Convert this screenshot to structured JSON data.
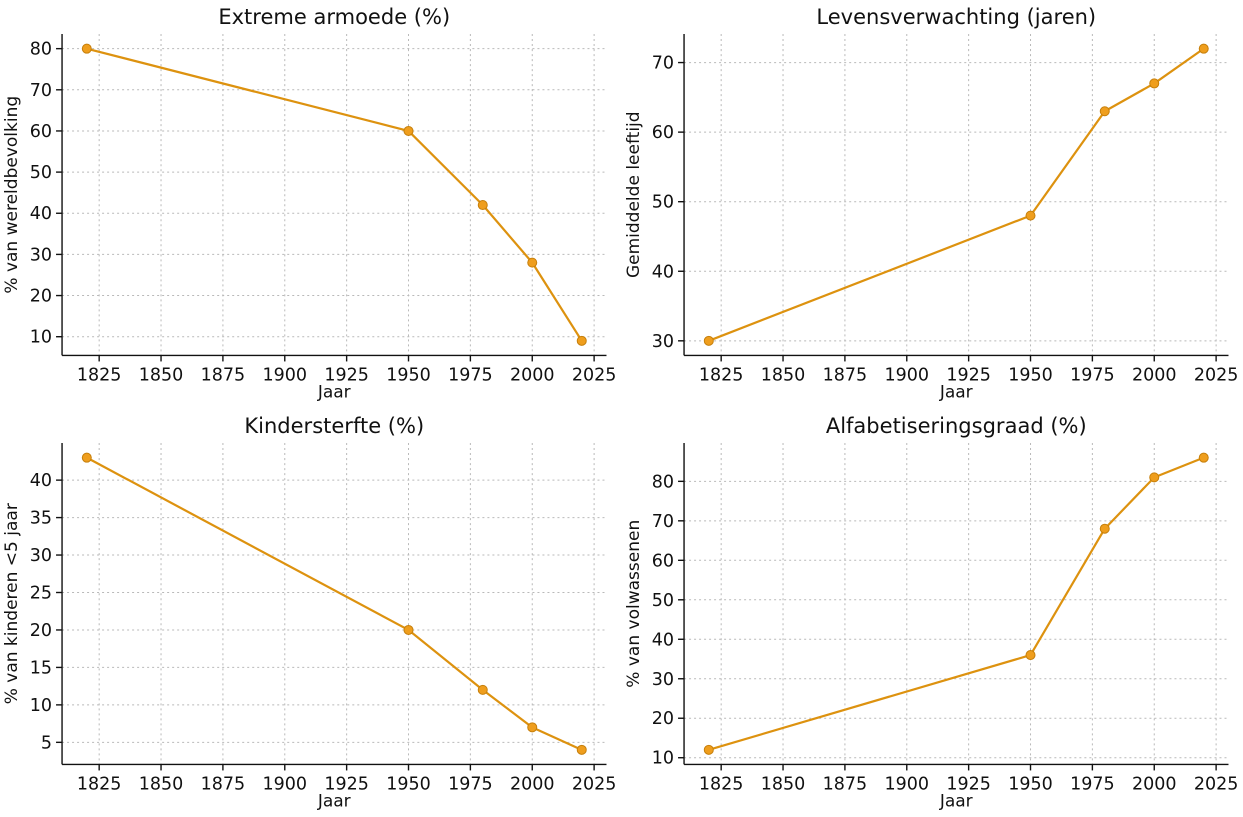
{
  "page": {
    "background": "#ffffff"
  },
  "style": {
    "line_color": "#dd920f",
    "marker_fill": "#ef9e1d",
    "marker_edge": "#c67f0b",
    "grid_color": "#b9b9b9",
    "axis_color": "#111111",
    "text_color": "#111111"
  },
  "chart_data": [
    {
      "id": "extreme-armoede",
      "type": "line",
      "title": "Extreme armoede (%)",
      "xlabel": "Jaar",
      "ylabel": "% van wereldbevolking",
      "x": [
        1820,
        1950,
        1980,
        2000,
        2020
      ],
      "values": [
        80,
        60,
        42,
        28,
        9
      ],
      "xlim": [
        1810,
        2030
      ],
      "ylim": [
        5.45,
        83.55
      ],
      "xticks": [
        1825,
        1850,
        1875,
        1900,
        1925,
        1950,
        1975,
        2000,
        2025
      ],
      "yticks": [
        10,
        20,
        30,
        40,
        50,
        60,
        70,
        80
      ],
      "grid": true,
      "legend": "none"
    },
    {
      "id": "levensverwachting",
      "type": "line",
      "title": "Levensverwachting (jaren)",
      "xlabel": "Jaar",
      "ylabel": "Gemiddelde leeftijd",
      "x": [
        1820,
        1950,
        1980,
        2000,
        2020
      ],
      "values": [
        30,
        48,
        63,
        67,
        72
      ],
      "xlim": [
        1810,
        2030
      ],
      "ylim": [
        27.9,
        74.1
      ],
      "xticks": [
        1825,
        1850,
        1875,
        1900,
        1925,
        1950,
        1975,
        2000,
        2025
      ],
      "yticks": [
        30,
        40,
        50,
        60,
        70
      ],
      "grid": true,
      "legend": "none"
    },
    {
      "id": "kindersterfte",
      "type": "line",
      "title": "Kindersterfte (%)",
      "xlabel": "Jaar",
      "ylabel": "% van kinderen <5 jaar",
      "x": [
        1820,
        1950,
        1980,
        2000,
        2020
      ],
      "values": [
        43,
        20,
        12,
        7,
        4
      ],
      "xlim": [
        1810,
        2030
      ],
      "ylim": [
        2.05,
        44.95
      ],
      "xticks": [
        1825,
        1850,
        1875,
        1900,
        1925,
        1950,
        1975,
        2000,
        2025
      ],
      "yticks": [
        5,
        10,
        15,
        20,
        25,
        30,
        35,
        40
      ],
      "grid": true,
      "legend": "none"
    },
    {
      "id": "alfabetiseringsgraad",
      "type": "line",
      "title": "Alfabetiseringsgraad (%)",
      "xlabel": "Jaar",
      "ylabel": "% van volwassenen",
      "x": [
        1820,
        1950,
        1980,
        2000,
        2020
      ],
      "values": [
        12,
        36,
        68,
        81,
        86
      ],
      "xlim": [
        1810,
        2030
      ],
      "ylim": [
        8.3,
        89.7
      ],
      "xticks": [
        1825,
        1850,
        1875,
        1900,
        1925,
        1950,
        1975,
        2000,
        2025
      ],
      "yticks": [
        10,
        20,
        30,
        40,
        50,
        60,
        70,
        80
      ],
      "grid": true,
      "legend": "none"
    }
  ]
}
